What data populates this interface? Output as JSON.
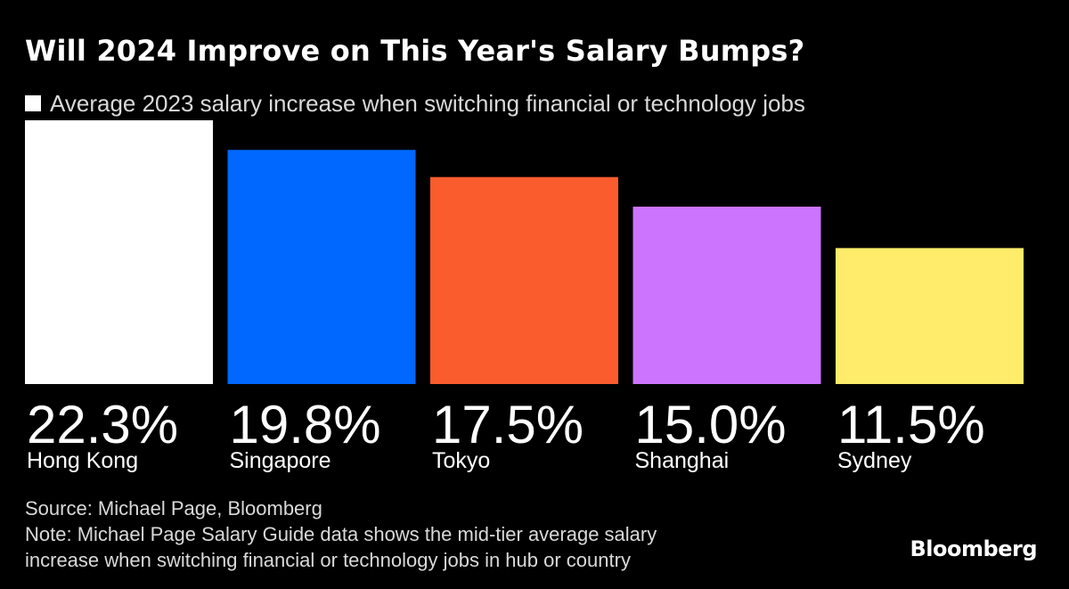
{
  "header": {
    "title": "Will 2024 Improve on This Year's Salary Bumps?",
    "legend_label": "Average 2023 salary increase when switching financial or technology jobs"
  },
  "chart_data": {
    "type": "bar",
    "title": "Will 2024 Improve on This Year's Salary Bumps?",
    "categories": [
      "Hong Kong",
      "Singapore",
      "Tokyo",
      "Shanghai",
      "Sydney"
    ],
    "values": [
      22.3,
      19.8,
      17.5,
      15.0,
      11.5
    ],
    "value_labels": [
      "22.3%",
      "19.8%",
      "17.5%",
      "15.0%",
      "11.5%"
    ],
    "colors": [
      "#ffffff",
      "#0068ff",
      "#fa5c2d",
      "#cd74ff",
      "#ffec6a"
    ],
    "series": [
      {
        "name": "Average 2023 salary increase when switching financial or technology jobs",
        "values": [
          22.3,
          19.8,
          17.5,
          15.0,
          11.5
        ]
      }
    ],
    "ylim": [
      0,
      22.3
    ],
    "grid": false,
    "legend_position": "top-left"
  },
  "footer": {
    "source": "Source: Michael Page, Bloomberg",
    "note_line1": "Note: Michael Page Salary Guide data shows the mid-tier average salary",
    "note_line2": "increase when switching financial or technology jobs in hub or country",
    "brand": "Bloomberg"
  },
  "colors": {
    "background": "#000000",
    "text": "#ffffff",
    "muted_text": "#d9d9d9"
  }
}
